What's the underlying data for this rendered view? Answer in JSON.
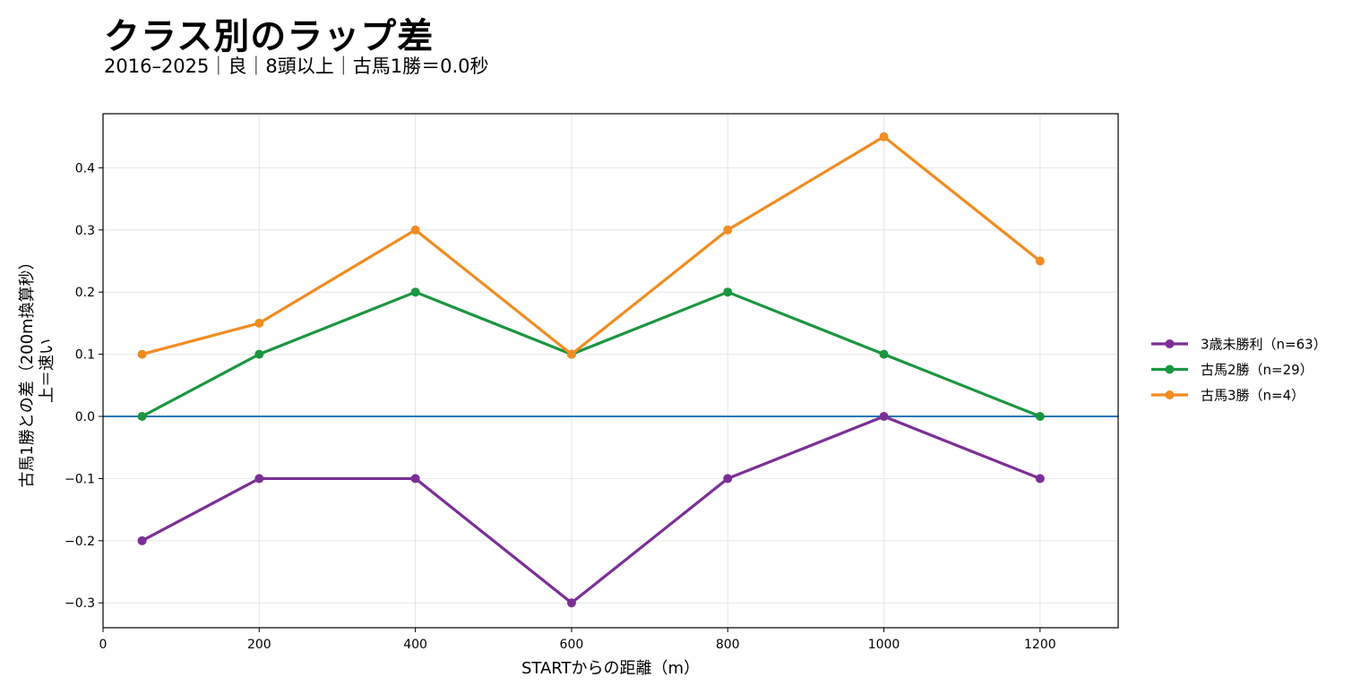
{
  "title": "クラス別のラップ差",
  "subtitle": "2016–2025｜良｜8頭以上｜古馬1勝＝0.0秒",
  "chart_data": {
    "type": "line",
    "xlabel": "STARTからの距離（m）",
    "ylabel_lines": [
      "古馬1勝との差（200m換算秒）",
      "上＝速い"
    ],
    "xlim": [
      0,
      1300
    ],
    "ylim": [
      -0.34,
      0.487
    ],
    "xticks": [
      0,
      200,
      400,
      600,
      800,
      1000,
      1200
    ],
    "yticks": [
      -0.3,
      -0.2,
      -0.1,
      0.0,
      0.1,
      0.2,
      0.3,
      0.4
    ],
    "ytick_labels": [
      "−0.3",
      "−0.2",
      "−0.1",
      "0.0",
      "0.1",
      "0.2",
      "0.3",
      "0.4"
    ],
    "x": [
      50,
      200,
      400,
      600,
      800,
      1000,
      1200
    ],
    "grid": true,
    "legend_position": "right-center",
    "reference_line": {
      "y": 0.0,
      "color": "#1f77b4"
    },
    "series": [
      {
        "name": "3歳未勝利（n=63）",
        "color": "#7b2f96",
        "values": [
          -0.2,
          -0.1,
          -0.1,
          -0.3,
          -0.1,
          0.0,
          -0.1
        ]
      },
      {
        "name": "古馬2勝（n=29）",
        "color": "#1b9640",
        "values": [
          0.0,
          0.1,
          0.2,
          0.1,
          0.2,
          0.1,
          0.0
        ]
      },
      {
        "name": "古馬3勝（n=4）",
        "color": "#f08c21",
        "values": [
          0.1,
          0.15,
          0.3,
          0.1,
          0.3,
          0.45,
          0.25
        ]
      }
    ]
  }
}
